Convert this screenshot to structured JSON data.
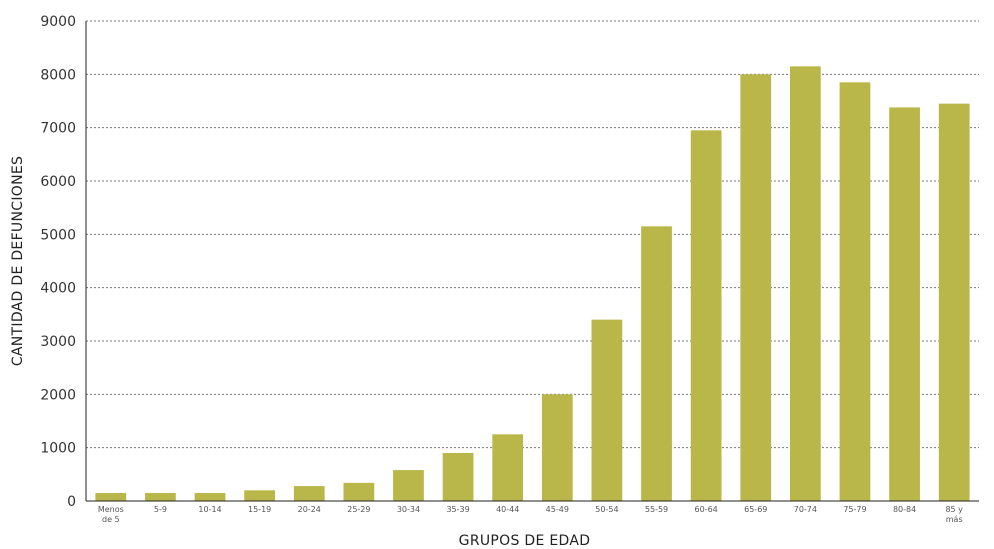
{
  "chart_data": {
    "type": "bar",
    "xlabel": "GRUPOS DE EDAD",
    "ylabel": "CANTIDAD DE DEFUNCIONES",
    "ylim": [
      0,
      9000
    ],
    "yticks": [
      0,
      1000,
      2000,
      3000,
      4000,
      5000,
      6000,
      7000,
      8000,
      9000
    ],
    "grid": true,
    "categories": [
      [
        "Menos",
        "de 5"
      ],
      [
        "5-9"
      ],
      [
        "10-14"
      ],
      [
        "15-19"
      ],
      [
        "20-24"
      ],
      [
        "25-29"
      ],
      [
        "30-34"
      ],
      [
        "35-39"
      ],
      [
        "40-44"
      ],
      [
        "45-49"
      ],
      [
        "50-54"
      ],
      [
        "55-59"
      ],
      [
        "60-64"
      ],
      [
        "65-69"
      ],
      [
        "70-74"
      ],
      [
        "75-79"
      ],
      [
        "80-84"
      ],
      [
        "85 y",
        "más"
      ]
    ],
    "values": [
      150,
      150,
      150,
      200,
      280,
      340,
      580,
      900,
      1250,
      2000,
      3400,
      5150,
      6950,
      8000,
      8150,
      7850,
      7380,
      7450
    ],
    "colors": {
      "bar": "#bab74a",
      "axis": "#222222",
      "grid": "#777777"
    }
  }
}
